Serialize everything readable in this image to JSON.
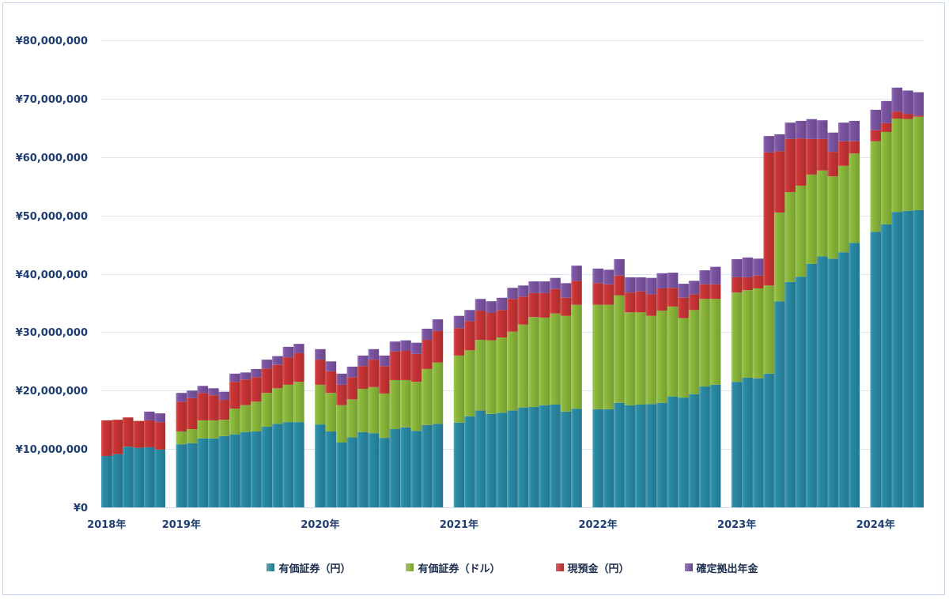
{
  "chart_data": {
    "type": "bar",
    "stacked": true,
    "x_groups": [
      "2018年",
      "2019年",
      "2020年",
      "2021年",
      "2022年",
      "2023年",
      "2024年"
    ],
    "ylim": [
      0,
      80000000
    ],
    "y_ticks": [
      0,
      10000000,
      20000000,
      30000000,
      40000000,
      50000000,
      60000000,
      70000000,
      80000000
    ],
    "y_tick_labels": [
      "¥0",
      "¥10,000,000",
      "¥20,000,000",
      "¥30,000,000",
      "¥40,000,000",
      "¥50,000,000",
      "¥60,000,000",
      "¥70,000,000",
      "¥80,000,000"
    ],
    "grid": true,
    "legend": "bottom",
    "series": [
      {
        "name": "有価証券（円）",
        "color": "#2a8ca7",
        "values": [
          [
            8800000,
            9100000,
            10400000,
            10200000,
            10300000,
            9900000
          ],
          [
            10800000,
            11000000,
            11800000,
            11800000,
            12200000,
            12500000,
            12900000,
            13000000,
            13800000,
            14300000,
            14600000,
            14600000
          ],
          [
            14200000,
            13000000,
            11100000,
            12000000,
            12900000,
            12700000,
            11900000,
            13400000,
            13700000,
            13100000,
            14100000,
            14300000
          ],
          [
            14500000,
            15600000,
            16600000,
            16000000,
            16200000,
            16600000,
            17100000,
            17200000,
            17500000,
            17600000,
            16400000,
            16900000
          ],
          [
            16800000,
            16800000,
            17900000,
            17500000,
            17600000,
            17700000,
            17900000,
            19000000,
            18800000,
            19400000,
            20700000,
            21000000
          ],
          [
            21500000,
            22200000,
            22100000,
            22900000,
            35300000,
            38600000,
            39500000,
            41700000,
            43000000,
            42600000,
            43700000,
            45300000
          ],
          [
            47200000,
            48500000,
            50600000,
            50800000,
            50900000
          ]
        ]
      },
      {
        "name": "有価証券（ドル）",
        "color": "#8dbb3b",
        "values": [
          [
            0,
            0,
            0,
            0,
            0,
            0
          ],
          [
            2200000,
            2400000,
            3100000,
            3100000,
            2800000,
            4400000,
            4600000,
            5100000,
            5800000,
            6100000,
            6400000,
            6900000
          ],
          [
            6800000,
            6600000,
            6400000,
            6500000,
            7400000,
            7900000,
            7600000,
            8400000,
            8100000,
            8400000,
            9600000,
            10500000
          ],
          [
            11500000,
            11300000,
            12100000,
            12600000,
            12900000,
            13500000,
            14200000,
            15400000,
            15000000,
            15600000,
            16400000,
            17800000
          ],
          [
            17900000,
            17900000,
            18400000,
            15900000,
            15800000,
            15100000,
            15800000,
            15400000,
            13600000,
            14400000,
            15000000,
            14700000
          ],
          [
            15300000,
            15000000,
            15400000,
            15100000,
            15200000,
            15400000,
            15600000,
            15300000,
            14700000,
            14100000,
            14800000,
            15300000
          ],
          [
            15500000,
            15800000,
            16000000,
            15700000,
            16000000
          ]
        ]
      },
      {
        "name": "現預金（円）",
        "color": "#cd3536",
        "values": [
          [
            6100000,
            5900000,
            5000000,
            4600000,
            4600000,
            4700000
          ],
          [
            5100000,
            5300000,
            4700000,
            4300000,
            3400000,
            4600000,
            4400000,
            4200000,
            4200000,
            4000000,
            4700000,
            4900000
          ],
          [
            4300000,
            3700000,
            3500000,
            3800000,
            3900000,
            4700000,
            4700000,
            4900000,
            5000000,
            4800000,
            5000000,
            5400000
          ],
          [
            4700000,
            5000000,
            5000000,
            4700000,
            4700000,
            5600000,
            4800000,
            4100000,
            4200000,
            4200000,
            3100000,
            4100000
          ],
          [
            3700000,
            3500000,
            3400000,
            3400000,
            3600000,
            3700000,
            3800000,
            3200000,
            3500000,
            2700000,
            2500000,
            2500000
          ],
          [
            2600000,
            2200000,
            2200000,
            22800000,
            10500000,
            9100000,
            8100000,
            6100000,
            5400000,
            4200000,
            4200000,
            2100000
          ],
          [
            1900000,
            1500000,
            1200000,
            900000,
            200000
          ]
        ]
      },
      {
        "name": "確定拠出年金",
        "color": "#7e56a6",
        "values": [
          [
            0,
            0,
            0,
            0,
            1500000,
            1500000
          ],
          [
            1500000,
            1300000,
            1200000,
            1200000,
            1400000,
            1400000,
            1200000,
            1400000,
            1500000,
            1500000,
            1800000,
            1600000
          ],
          [
            1800000,
            1700000,
            1900000,
            1800000,
            1800000,
            1800000,
            1800000,
            1700000,
            1800000,
            1900000,
            1900000,
            2000000
          ],
          [
            2100000,
            1900000,
            2000000,
            2000000,
            2100000,
            1900000,
            1900000,
            2000000,
            2000000,
            1900000,
            2500000,
            2600000
          ],
          [
            2500000,
            2500000,
            2800000,
            2600000,
            2400000,
            2800000,
            2600000,
            2600000,
            2400000,
            2300000,
            2400000,
            3000000
          ],
          [
            3100000,
            3400000,
            2900000,
            2800000,
            2900000,
            2800000,
            3000000,
            3400000,
            3200000,
            3300000,
            3200000,
            3500000
          ],
          [
            3500000,
            3800000,
            4100000,
            4000000,
            4000000
          ]
        ]
      }
    ]
  }
}
